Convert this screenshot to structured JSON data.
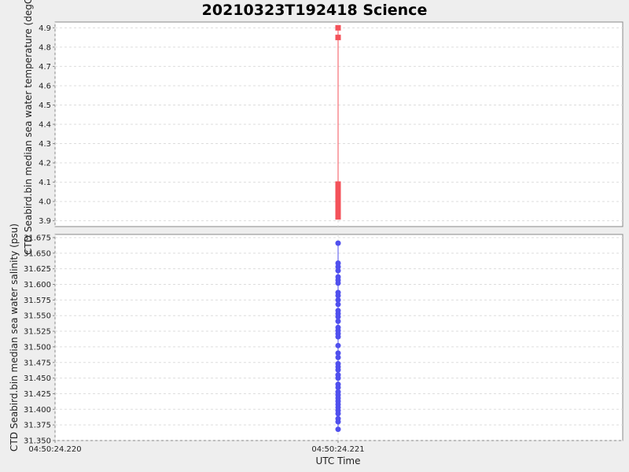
{
  "chart_data": {
    "title": "20210323T192418 Science",
    "xlabel": "UTC Time",
    "x_ticks": [
      "04:50:24.220",
      "04:50:24.221"
    ],
    "colors": {
      "temperature": "#f4525a",
      "salinity": "#5050ee"
    },
    "panels": [
      {
        "type": "scatter",
        "marker": "square",
        "connected": true,
        "ylabel": "CTD Seabird.bin median sea water temperature (degC)",
        "ylim": [
          3.87,
          4.93
        ],
        "y_ticks": [
          "3.9",
          "4.0",
          "4.1",
          "4.2",
          "4.3",
          "4.4",
          "4.5",
          "4.6",
          "4.7",
          "4.8",
          "4.9"
        ],
        "grid": true,
        "series": [
          {
            "x": "04:50:24.221",
            "values": [
              4.9,
              4.85,
              4.09,
              4.08,
              4.07,
              4.06,
              4.05,
              4.04,
              4.03,
              4.02,
              4.01,
              4.0,
              3.99,
              3.98,
              3.97,
              3.96,
              3.95,
              3.94,
              3.93,
              3.92
            ]
          }
        ]
      },
      {
        "type": "scatter",
        "marker": "circle",
        "connected": true,
        "ylabel": "CTD Seabird.bin median sea water salinity (psu)",
        "ylim": [
          31.35,
          31.68
        ],
        "y_ticks": [
          "31.350",
          "31.375",
          "31.400",
          "31.425",
          "31.450",
          "31.475",
          "31.500",
          "31.525",
          "31.550",
          "31.575",
          "31.600",
          "31.625",
          "31.650",
          "31.675"
        ],
        "grid": true,
        "series": [
          {
            "x": "04:50:24.221",
            "values": [
              31.666,
              31.634,
              31.628,
              31.622,
              31.612,
              31.607,
              31.602,
              31.587,
              31.582,
              31.575,
              31.568,
              31.558,
              31.553,
              31.548,
              31.541,
              31.531,
              31.526,
              31.521,
              31.516,
              31.502,
              31.49,
              31.483,
              31.473,
              31.468,
              31.463,
              31.455,
              31.45,
              31.44,
              31.435,
              31.428,
              31.423,
              31.418,
              31.413,
              31.408,
              31.403,
              31.398,
              31.393,
              31.385,
              31.38,
              31.368
            ]
          }
        ]
      }
    ]
  }
}
